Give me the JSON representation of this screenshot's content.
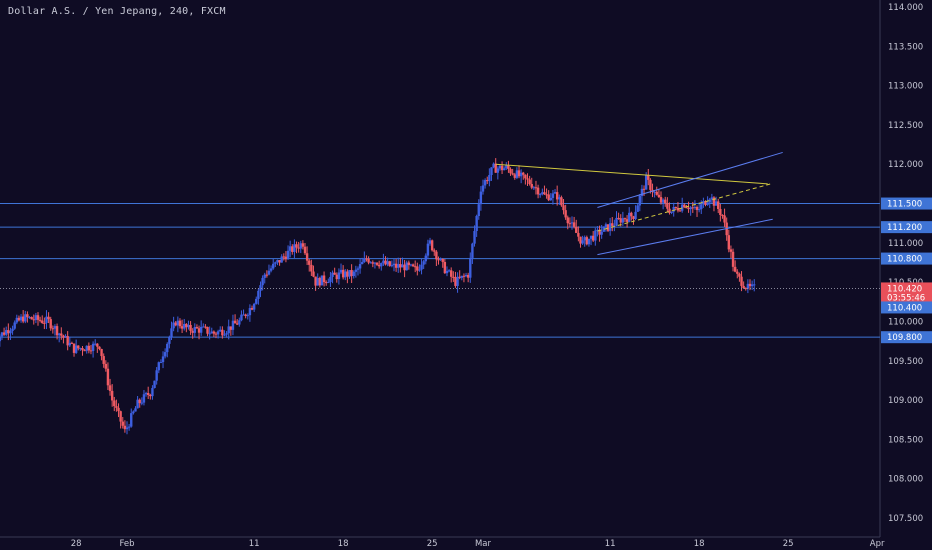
{
  "header": {
    "symbol_title": "Dollar A.S. / Yen Jepang, 240, FXCM"
  },
  "colors": {
    "background": "#0f0c24",
    "bull": "#3d5fe0",
    "bear": "#f05b63",
    "level_line": "#3f74d6",
    "trend_line": "#d1c93f",
    "channel": "#5b7df0",
    "price_tag": "#e8505a",
    "level_tag": "#3f74d6"
  },
  "chart_data": {
    "type": "candlestick",
    "ylim": [
      107.3,
      114.1
    ],
    "y_ticks": [
      "114.000",
      "113.500",
      "113.000",
      "112.500",
      "112.000",
      "111.500",
      "111.000",
      "110.500",
      "110.000",
      "109.500",
      "109.000",
      "108.500",
      "108.000",
      "107.500"
    ],
    "x_ticks": [
      "28",
      "Feb",
      "11",
      "18",
      "25",
      "Mar",
      "11",
      "18",
      "25",
      "Apr"
    ],
    "price_levels": [
      111.5,
      111.2,
      110.8,
      109.8
    ],
    "level_tags": [
      "111.500",
      "111.200",
      "110.800",
      "109.800"
    ],
    "last_price": "110.420",
    "countdown": "03:55:46",
    "bid_tag": "110.400",
    "anchor_points": [
      {
        "t": "Jan 22",
        "p": 109.8
      },
      {
        "t": "Jan 24",
        "p": 110.05
      },
      {
        "t": "Jan 26",
        "p": 110.0
      },
      {
        "t": "Jan 28",
        "p": 109.65
      },
      {
        "t": "Jan 30",
        "p": 109.7
      },
      {
        "t": "Jan 31",
        "p": 109.0
      },
      {
        "t": "Feb 1",
        "p": 108.6
      },
      {
        "t": "Feb 2",
        "p": 108.95
      },
      {
        "t": "Feb 3",
        "p": 109.1
      },
      {
        "t": "Feb 4",
        "p": 109.6
      },
      {
        "t": "Feb 5",
        "p": 110.0
      },
      {
        "t": "Feb 6",
        "p": 109.9
      },
      {
        "t": "Feb 7",
        "p": 109.9
      },
      {
        "t": "Feb 8",
        "p": 109.85
      },
      {
        "t": "Feb 9",
        "p": 109.9
      },
      {
        "t": "Feb 10",
        "p": 110.0
      },
      {
        "t": "Feb 11",
        "p": 110.2
      },
      {
        "t": "Feb 12",
        "p": 110.6
      },
      {
        "t": "Feb 13",
        "p": 110.75
      },
      {
        "t": "Feb 14",
        "p": 110.9
      },
      {
        "t": "Feb 15",
        "p": 111.0
      },
      {
        "t": "Feb 16",
        "p": 110.5
      },
      {
        "t": "Feb 17",
        "p": 110.55
      },
      {
        "t": "Feb 18",
        "p": 110.6
      },
      {
        "t": "Feb 19",
        "p": 110.6
      },
      {
        "t": "Feb 20",
        "p": 110.8
      },
      {
        "t": "Feb 21",
        "p": 110.75
      },
      {
        "t": "Feb 22",
        "p": 110.7
      },
      {
        "t": "Feb 23",
        "p": 110.7
      },
      {
        "t": "Feb 24",
        "p": 110.65
      },
      {
        "t": "Feb 25",
        "p": 111.0
      },
      {
        "t": "Feb 26",
        "p": 110.7
      },
      {
        "t": "Feb 27",
        "p": 110.5
      },
      {
        "t": "Feb 28",
        "p": 110.6
      },
      {
        "t": "Mar 1",
        "p": 111.7
      },
      {
        "t": "Mar 2",
        "p": 111.95
      },
      {
        "t": "Mar 3",
        "p": 111.95
      },
      {
        "t": "Mar 4",
        "p": 111.85
      },
      {
        "t": "Mar 5",
        "p": 111.75
      },
      {
        "t": "Mar 6",
        "p": 111.6
      },
      {
        "t": "Mar 7",
        "p": 111.6
      },
      {
        "t": "Mar 8",
        "p": 111.25
      },
      {
        "t": "Mar 9",
        "p": 111.0
      },
      {
        "t": "Mar 10",
        "p": 111.1
      },
      {
        "t": "Mar 11",
        "p": 111.2
      },
      {
        "t": "Mar 12",
        "p": 111.3
      },
      {
        "t": "Mar 13",
        "p": 111.35
      },
      {
        "t": "Mar 14",
        "p": 111.8
      },
      {
        "t": "Mar 15",
        "p": 111.55
      },
      {
        "t": "Mar 16",
        "p": 111.4
      },
      {
        "t": "Mar 17",
        "p": 111.5
      },
      {
        "t": "Mar 18",
        "p": 111.4
      },
      {
        "t": "Mar 19",
        "p": 111.6
      },
      {
        "t": "Mar 20",
        "p": 111.35
      },
      {
        "t": "Mar 21",
        "p": 110.6
      },
      {
        "t": "Mar 22",
        "p": 110.42
      }
    ]
  }
}
